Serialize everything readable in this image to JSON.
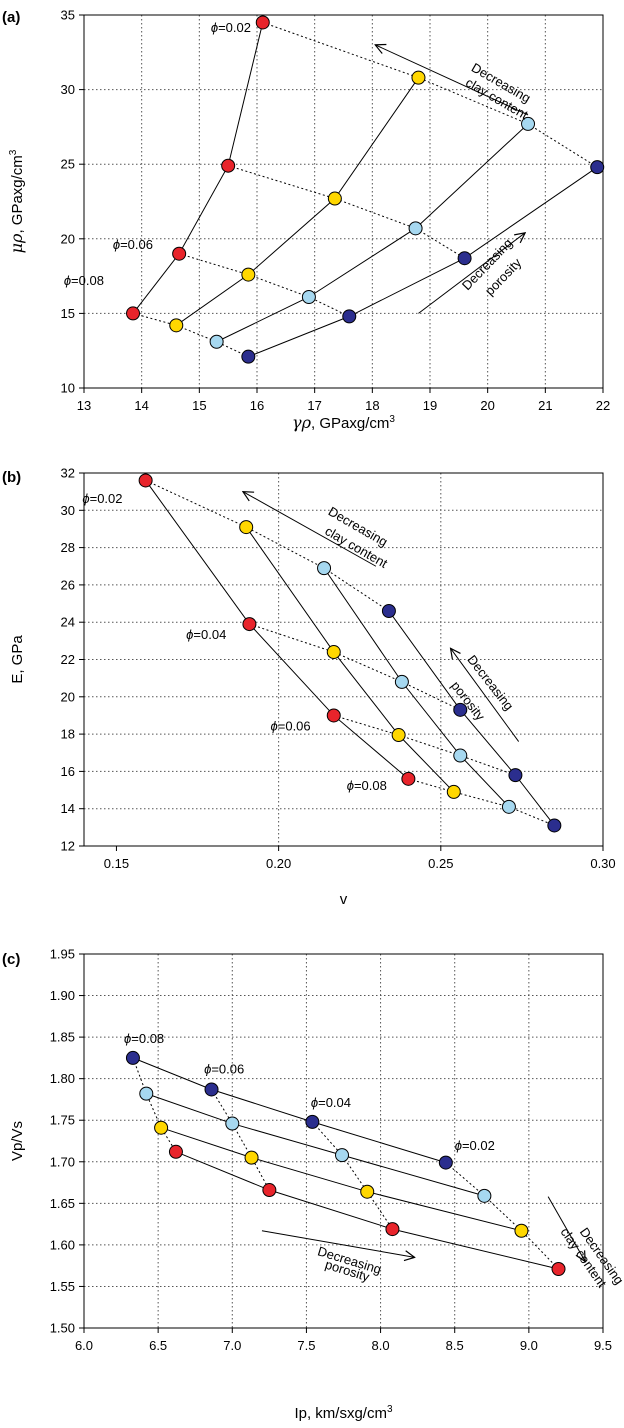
{
  "chart_data": [
    {
      "type": "scatter",
      "panel_label": "(a)",
      "xlabel_sym": "γρ",
      "xlabel": ", GPaxg/cm",
      "xlabel_sup": "3",
      "ylabel_sym": "μρ",
      "ylabel": ", GPaxg/cm",
      "ylabel_sup": "3",
      "xlim": [
        13,
        22
      ],
      "ylim": [
        10,
        35
      ],
      "xticks": [
        13,
        14,
        15,
        16,
        17,
        18,
        19,
        20,
        21,
        22
      ],
      "yticks": [
        10,
        15,
        20,
        25,
        30,
        35
      ],
      "xtick_labels": [
        "13",
        "14",
        "15",
        "16",
        "17",
        "18",
        "19",
        "20",
        "21",
        "22"
      ],
      "ytick_labels": [
        "10",
        "15",
        "20",
        "25",
        "30",
        "35"
      ],
      "grid": "dotted",
      "colors": {
        "red": "#e8242b",
        "yellow": "#ffd700",
        "lightblue": "#a6d8f0",
        "navy": "#2b2e8e"
      },
      "series": [
        {
          "color": "red",
          "points": [
            [
              16.1,
              34.5
            ],
            [
              15.5,
              24.9
            ],
            [
              14.65,
              19.0
            ],
            [
              13.85,
              15.0
            ]
          ]
        },
        {
          "color": "yellow",
          "points": [
            [
              18.8,
              30.8
            ],
            [
              17.35,
              22.7
            ],
            [
              15.85,
              17.6
            ],
            [
              14.6,
              14.2
            ]
          ]
        },
        {
          "color": "lightblue",
          "points": [
            [
              20.7,
              27.7
            ],
            [
              18.75,
              20.7
            ],
            [
              16.9,
              16.1
            ],
            [
              15.3,
              13.1
            ]
          ]
        },
        {
          "color": "navy",
          "points": [
            [
              21.9,
              24.8
            ],
            [
              19.6,
              18.7
            ],
            [
              17.6,
              14.8
            ],
            [
              15.85,
              12.1
            ]
          ]
        }
      ],
      "annotations": [
        {
          "text": "ϕ=0.02",
          "x": 15.2,
          "y": 33.85,
          "rot": 0
        },
        {
          "text": "ϕ=0.06",
          "x": 13.5,
          "y": 19.3,
          "rot": 0
        },
        {
          "text": "ϕ=0.08",
          "x": 12.65,
          "y": 16.9,
          "rot": 0
        },
        {
          "text": "Decreasing",
          "x": 19.7,
          "y": 31.3,
          "rot": 30
        },
        {
          "text": "clay content",
          "x": 19.6,
          "y": 30.3,
          "rot": 30
        },
        {
          "text": "Decreasing",
          "x": 19.65,
          "y": 16.5,
          "rot": -46
        },
        {
          "text": "porosity",
          "x": 20.05,
          "y": 16.15,
          "rot": -46
        }
      ],
      "arrows": [
        {
          "from": [
            20.7,
            28.3
          ],
          "to": [
            18.05,
            33.0
          ]
        },
        {
          "from": [
            18.8,
            15.0
          ],
          "to": [
            20.65,
            20.4
          ]
        }
      ]
    },
    {
      "type": "scatter",
      "panel_label": "(b)",
      "xlabel": "v",
      "ylabel": "E, GPa",
      "xlim": [
        0.14,
        0.3
      ],
      "ylim": [
        12,
        32
      ],
      "xticks": [
        0.15,
        0.2,
        0.25,
        0.3
      ],
      "yticks": [
        12,
        14,
        16,
        18,
        20,
        22,
        24,
        26,
        28,
        30,
        32
      ],
      "xtick_labels": [
        "0.15",
        "0.20",
        "0.25",
        "0.30"
      ],
      "ytick_labels": [
        "12",
        "14",
        "16",
        "18",
        "20",
        "22",
        "24",
        "26",
        "28",
        "30",
        "32"
      ],
      "grid": "dotted",
      "series": [
        {
          "color": "red",
          "points": [
            [
              0.159,
              31.6
            ],
            [
              0.191,
              23.9
            ],
            [
              0.217,
              19.0
            ],
            [
              0.24,
              15.6
            ]
          ]
        },
        {
          "color": "yellow",
          "points": [
            [
              0.19,
              29.1
            ],
            [
              0.217,
              22.4
            ],
            [
              0.237,
              17.95
            ],
            [
              0.254,
              14.9
            ]
          ]
        },
        {
          "color": "lightblue",
          "points": [
            [
              0.214,
              26.9
            ],
            [
              0.238,
              20.8
            ],
            [
              0.256,
              16.85
            ],
            [
              0.271,
              14.1
            ]
          ]
        },
        {
          "color": "navy",
          "points": [
            [
              0.234,
              24.6
            ],
            [
              0.256,
              19.3
            ],
            [
              0.273,
              15.8
            ],
            [
              0.285,
              13.1
            ]
          ]
        }
      ],
      "annotations": [
        {
          "text": "ϕ=0.02",
          "x": 0.1395,
          "y": 30.4,
          "rot": 0
        },
        {
          "text": "ϕ=0.04",
          "x": 0.1715,
          "y": 23.1,
          "rot": 0
        },
        {
          "text": "ϕ=0.06",
          "x": 0.1975,
          "y": 18.2,
          "rot": 0
        },
        {
          "text": "ϕ=0.08",
          "x": 0.221,
          "y": 15.0,
          "rot": 0
        },
        {
          "text": "Decreasing",
          "x": 0.215,
          "y": 29.8,
          "rot": 30
        },
        {
          "text": "clay content",
          "x": 0.214,
          "y": 28.75,
          "rot": 30
        },
        {
          "text": "Decreasing",
          "x": 0.258,
          "y": 22.0,
          "rot": 52
        },
        {
          "text": "porosity",
          "x": 0.253,
          "y": 20.6,
          "rot": 52
        }
      ],
      "arrows": [
        {
          "from": [
            0.23,
            27.0
          ],
          "to": [
            0.189,
            31.0
          ]
        },
        {
          "from": [
            0.274,
            17.6
          ],
          "to": [
            0.253,
            22.6
          ]
        }
      ]
    },
    {
      "type": "scatter",
      "panel_label": "(c)",
      "xlabel": "Ip, km/sxg/cm",
      "xlabel_sup": "3",
      "ylabel": "Vp/Vs",
      "xlim": [
        6.0,
        9.5
      ],
      "ylim": [
        1.5,
        1.95
      ],
      "xticks": [
        6.0,
        6.5,
        7.0,
        7.5,
        8.0,
        8.5,
        9.0,
        9.5
      ],
      "yticks": [
        1.5,
        1.55,
        1.6,
        1.65,
        1.7,
        1.75,
        1.8,
        1.85,
        1.9,
        1.95
      ],
      "xtick_labels": [
        "6.0",
        "6.5",
        "7.0",
        "7.5",
        "8.0",
        "8.5",
        "9.0",
        "9.5"
      ],
      "ytick_labels": [
        "1.50",
        "1.55",
        "1.60",
        "1.65",
        "1.70",
        "1.75",
        "1.80",
        "1.85",
        "1.90",
        "1.95"
      ],
      "grid": "dotted",
      "series": [
        {
          "color": "navy",
          "points": [
            [
              6.33,
              1.825
            ],
            [
              6.86,
              1.787
            ],
            [
              7.54,
              1.748
            ],
            [
              8.44,
              1.699
            ]
          ]
        },
        {
          "color": "lightblue",
          "points": [
            [
              6.42,
              1.782
            ],
            [
              7.0,
              1.746
            ],
            [
              7.74,
              1.708
            ],
            [
              8.7,
              1.659
            ]
          ]
        },
        {
          "color": "yellow",
          "points": [
            [
              6.52,
              1.741
            ],
            [
              7.13,
              1.705
            ],
            [
              7.91,
              1.664
            ],
            [
              8.95,
              1.617
            ]
          ]
        },
        {
          "color": "red",
          "points": [
            [
              6.62,
              1.712
            ],
            [
              7.25,
              1.666
            ],
            [
              8.08,
              1.619
            ],
            [
              9.2,
              1.571
            ]
          ]
        }
      ],
      "annotations": [
        {
          "text": "ϕ=0.08",
          "x": 6.27,
          "y": 1.843,
          "rot": 0
        },
        {
          "text": "ϕ=0.06",
          "x": 6.81,
          "y": 1.806,
          "rot": 0
        },
        {
          "text": "ϕ=0.04",
          "x": 7.53,
          "y": 1.766,
          "rot": 0
        },
        {
          "text": "ϕ=0.02",
          "x": 8.5,
          "y": 1.714,
          "rot": 0
        },
        {
          "text": "Decreasing",
          "x": 7.57,
          "y": 1.588,
          "rot": 17
        },
        {
          "text": "porosity",
          "x": 7.62,
          "y": 1.572,
          "rot": 17
        },
        {
          "text": "Decreasing",
          "x": 9.34,
          "y": 1.616,
          "rot": 55
        },
        {
          "text": "clay content",
          "x": 9.21,
          "y": 1.616,
          "rot": 55
        }
      ],
      "arrows": [
        {
          "from": [
            7.2,
            1.617
          ],
          "to": [
            8.23,
            1.585
          ]
        },
        {
          "from": [
            9.13,
            1.658
          ],
          "to": [
            9.38,
            1.58
          ]
        }
      ]
    }
  ]
}
